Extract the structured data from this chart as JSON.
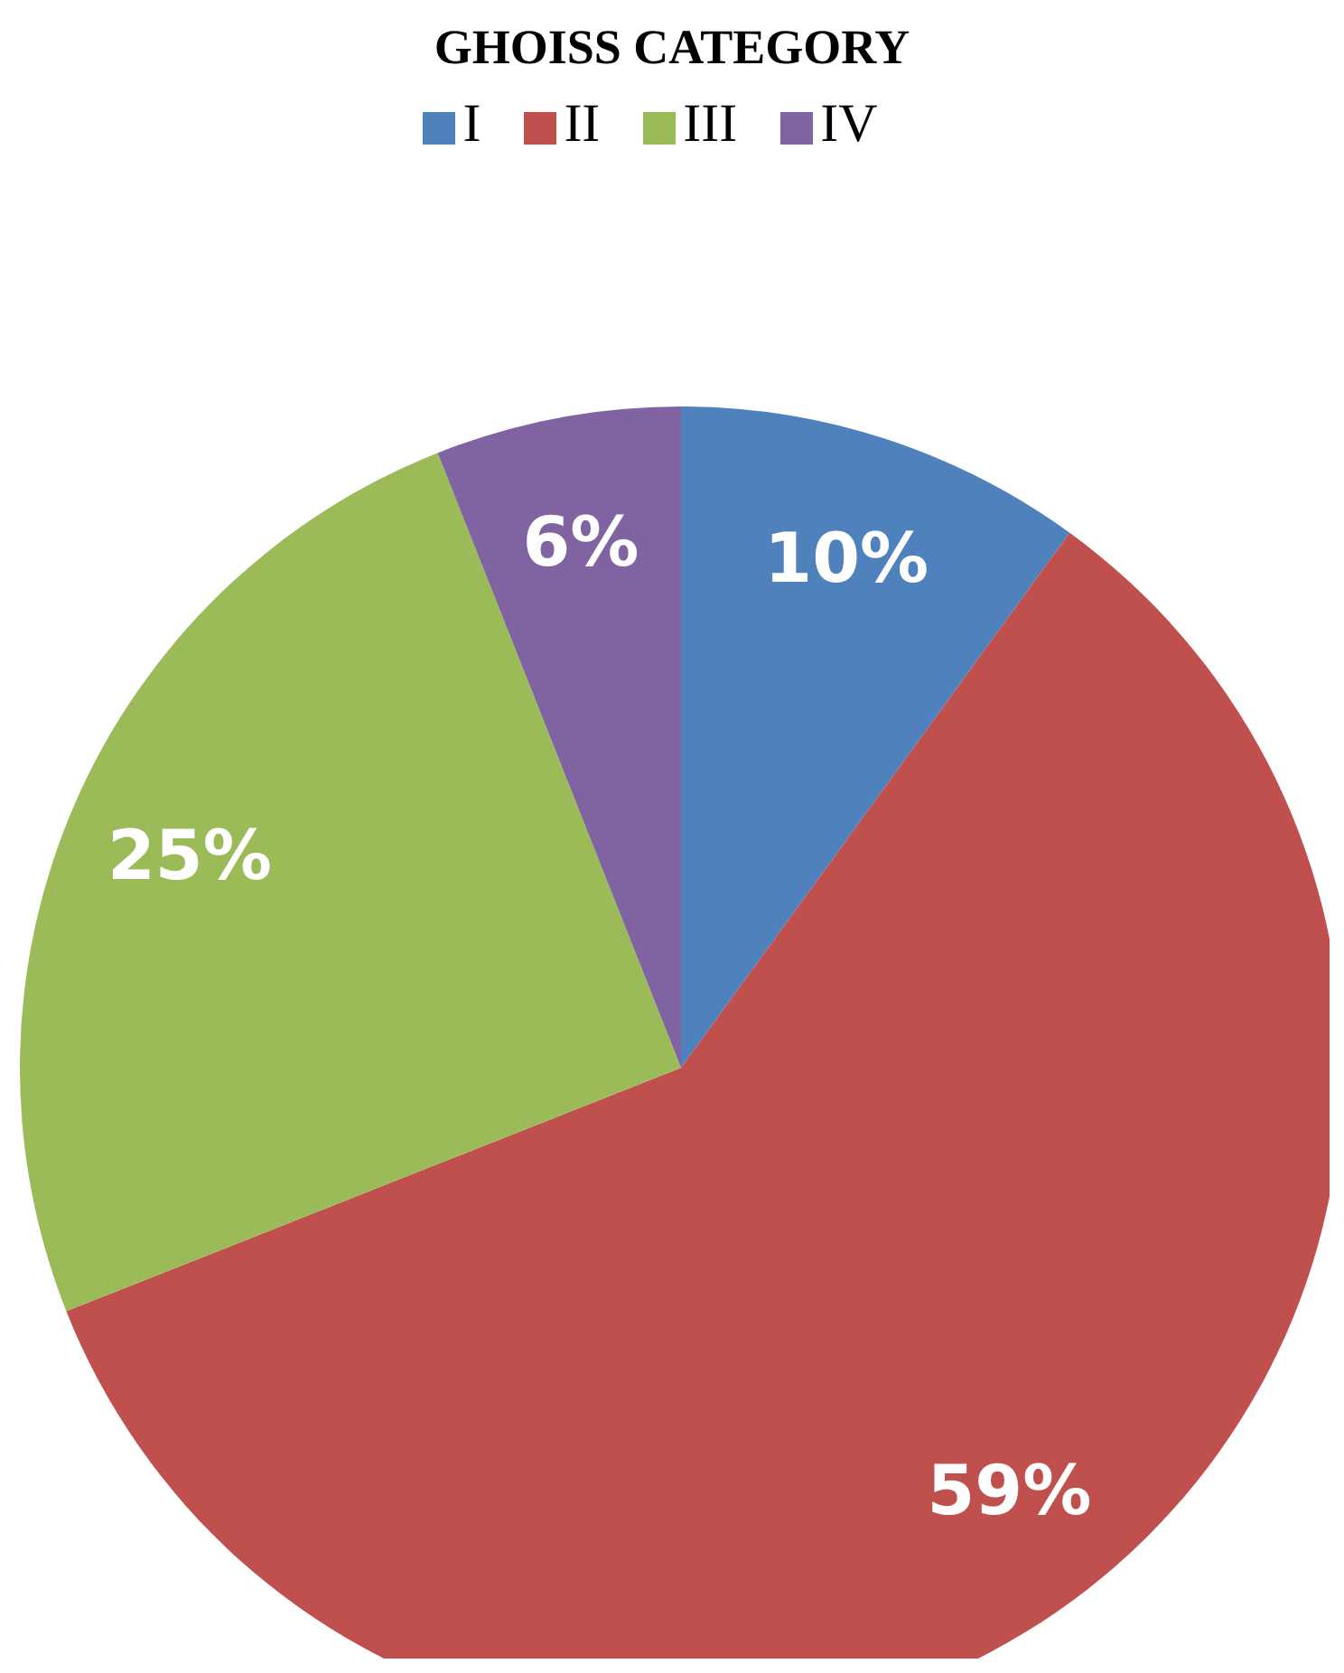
{
  "chart_data": {
    "type": "pie",
    "title": "GHOISS CATEGORY",
    "categories": [
      "I",
      "II",
      "III",
      "IV"
    ],
    "values": [
      10,
      59,
      25,
      6
    ],
    "colors": [
      "#4f81bd",
      "#c0504d",
      "#9bbb59",
      "#8064a2"
    ],
    "value_labels": [
      "10%",
      "59%",
      "25%",
      "6%"
    ],
    "legend": "top"
  }
}
